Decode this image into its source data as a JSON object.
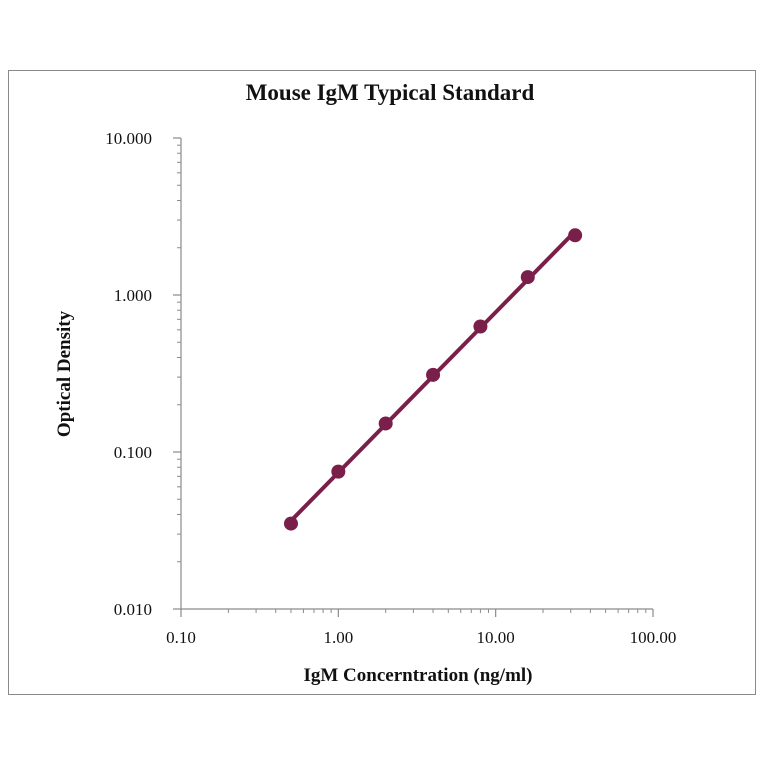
{
  "chart_data": {
    "type": "scatter",
    "title": "Mouse IgM Typical Standard",
    "xlabel": "IgM Concerntration (ng/ml)",
    "ylabel": "Optical Density",
    "x_scale": "log",
    "y_scale": "log",
    "xlim": [
      0.1,
      100
    ],
    "ylim": [
      0.01,
      10
    ],
    "x_ticks": [
      0.1,
      1,
      10,
      100
    ],
    "x_tick_labels": [
      "0.10",
      "1.00",
      "10.00",
      "100.00"
    ],
    "y_ticks": [
      0.01,
      0.1,
      1,
      10
    ],
    "y_tick_labels": [
      "0.010",
      "0.100",
      "1.000",
      "10.000"
    ],
    "grid": false,
    "legend": "none",
    "series": [
      {
        "x": [
          0.5,
          1,
          2,
          4,
          8,
          16,
          32
        ],
        "y": [
          0.035,
          0.075,
          0.152,
          0.31,
          0.63,
          1.3,
          2.4
        ],
        "color": "#7a1f4a",
        "marker": "circle",
        "fit_line": true
      }
    ]
  }
}
